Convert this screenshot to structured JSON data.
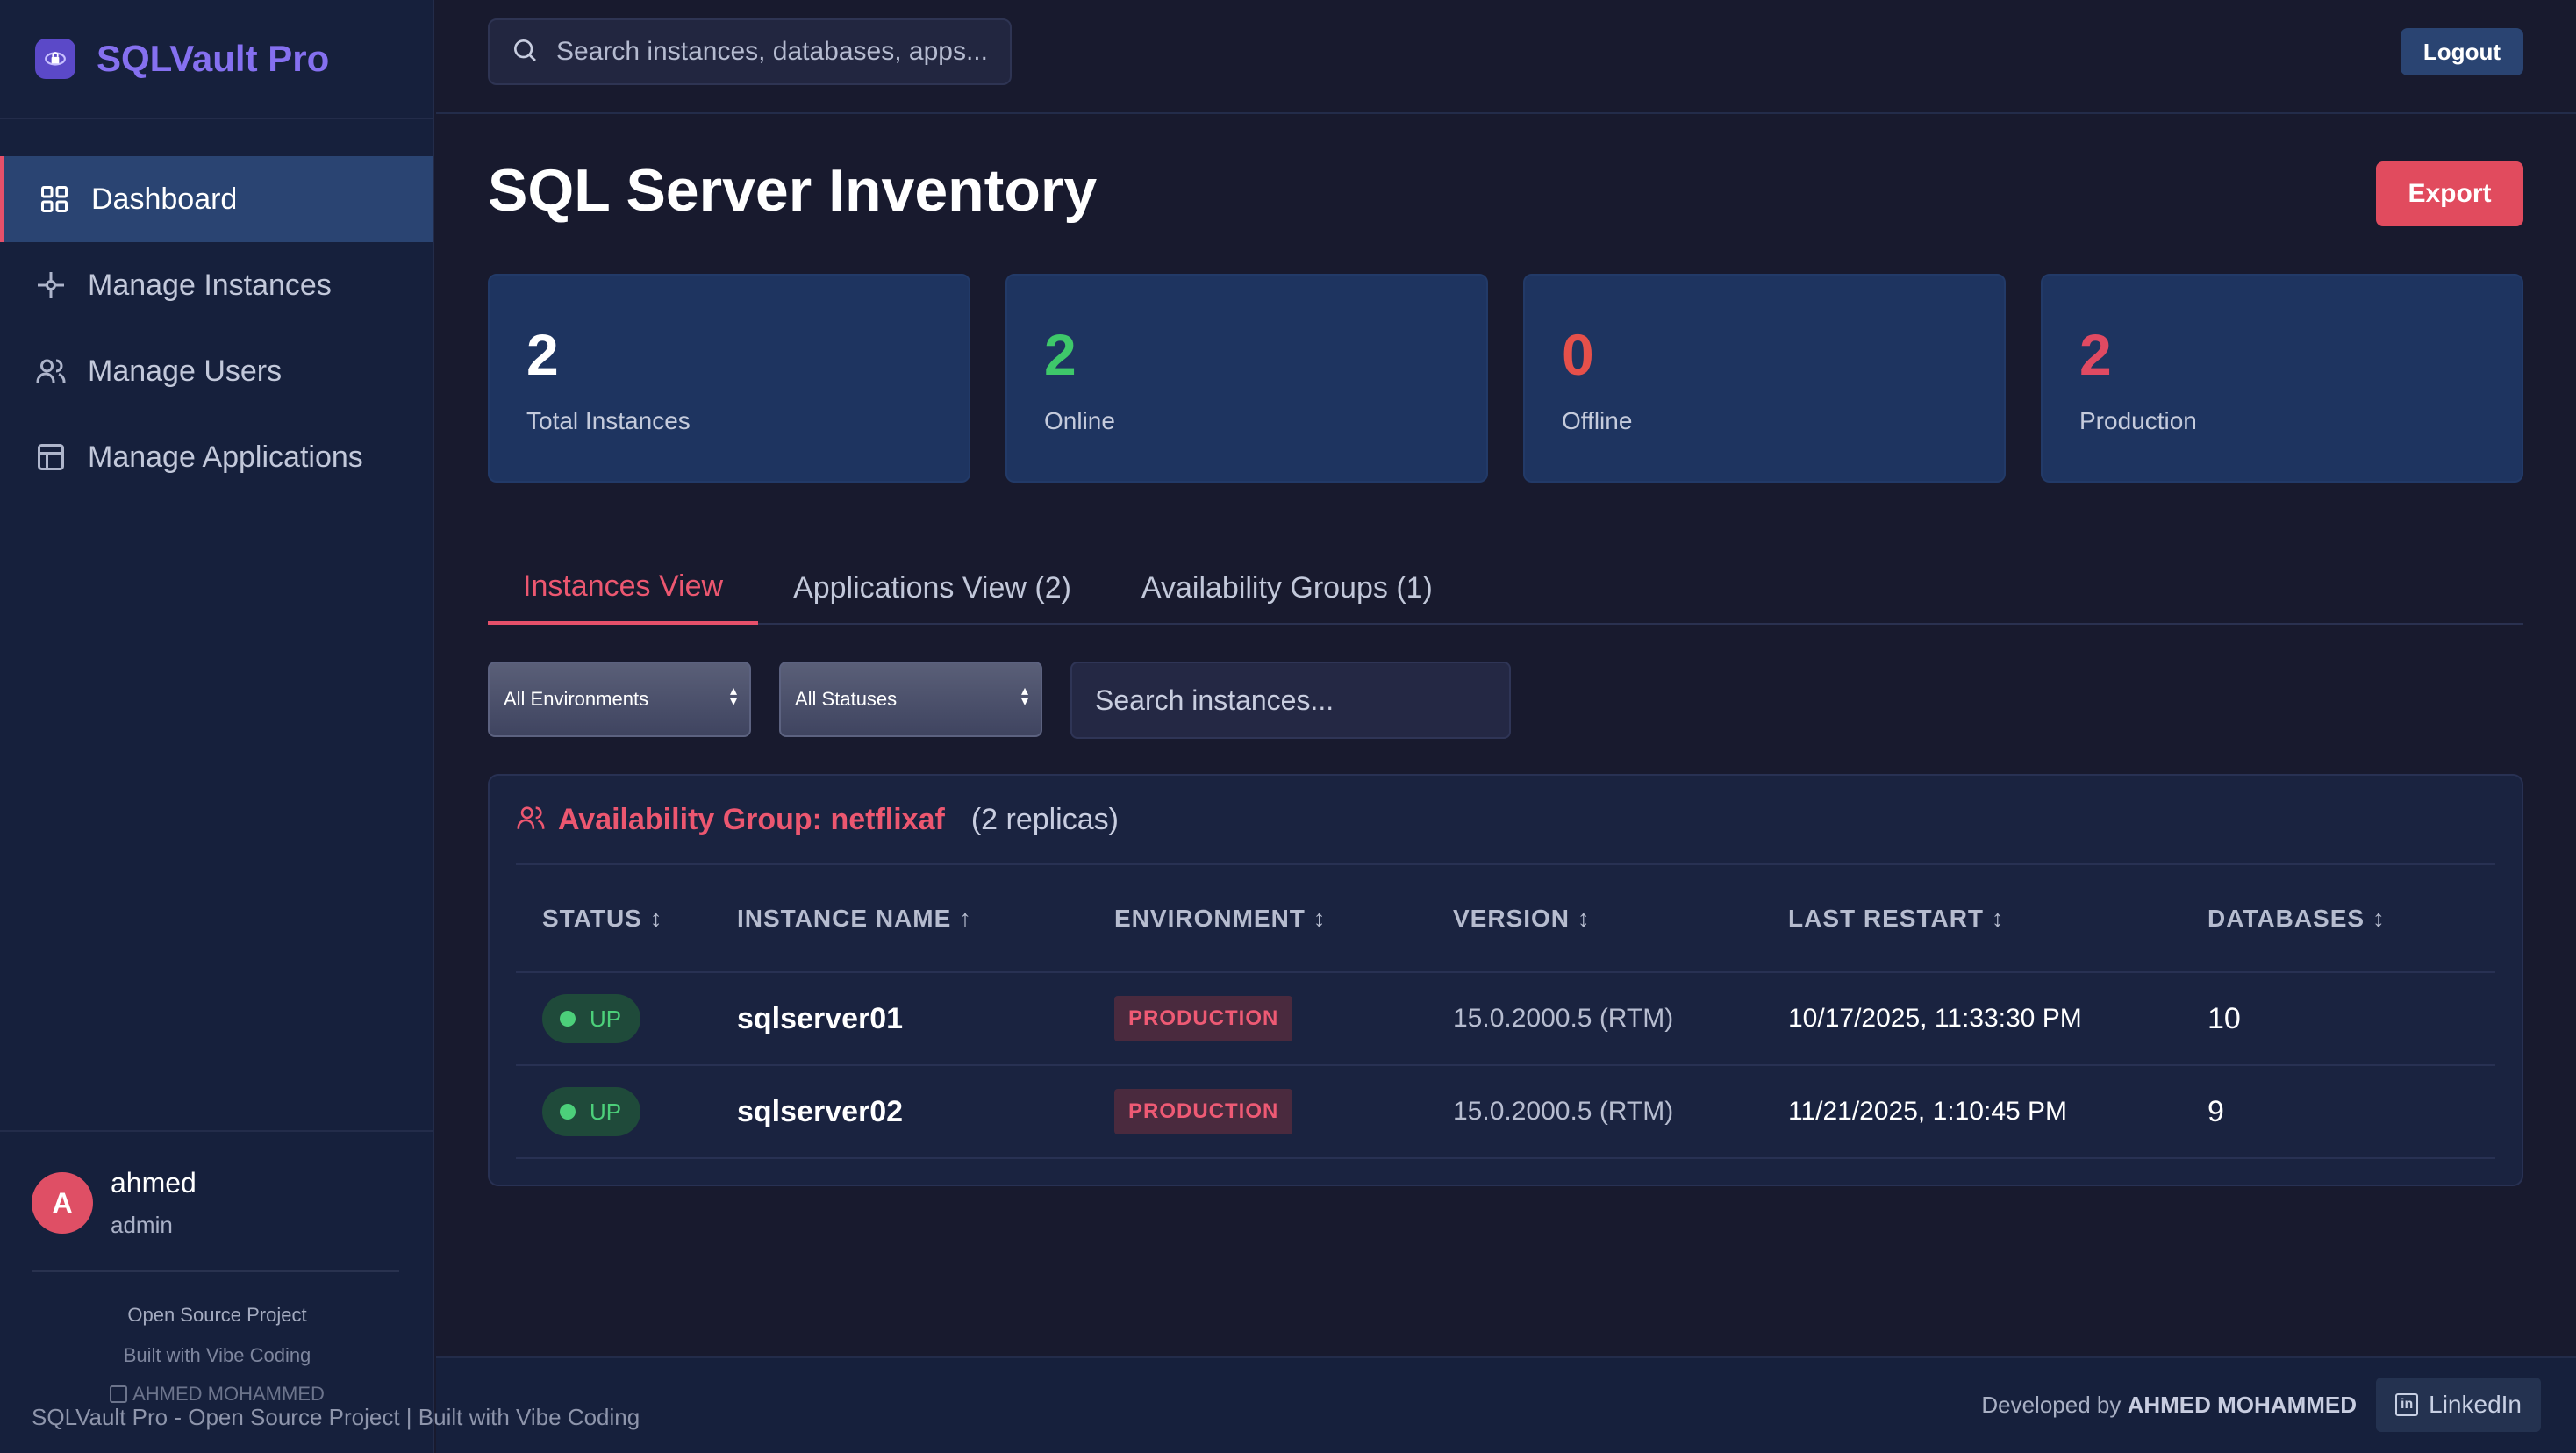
{
  "app": {
    "title": "SQLVault Pro"
  },
  "sidebar": {
    "items": [
      {
        "label": "Dashboard",
        "icon": "grid-icon",
        "active": true
      },
      {
        "label": "Manage Instances",
        "icon": "network-icon"
      },
      {
        "label": "Manage Users",
        "icon": "users-icon"
      },
      {
        "label": "Manage Applications",
        "icon": "layout-icon"
      }
    ],
    "user": {
      "initial": "A",
      "name": "ahmed",
      "role": "admin"
    },
    "footer": {
      "line1": "Open Source Project",
      "line2": "Built with Vibe Coding",
      "line3": "AHMED MOHAMMED"
    }
  },
  "topbar": {
    "search_placeholder": "Search instances, databases, apps...",
    "logout_label": "Logout"
  },
  "page": {
    "title": "SQL Server Inventory",
    "export_label": "Export"
  },
  "stats": [
    {
      "value": "2",
      "label": "Total Instances",
      "color": "#ffffff"
    },
    {
      "value": "2",
      "label": "Online",
      "color": "#3ec86a"
    },
    {
      "value": "0",
      "label": "Offline",
      "color": "#e6504a"
    },
    {
      "value": "2",
      "label": "Production",
      "color": "#e04a62"
    }
  ],
  "tabs": [
    {
      "label": "Instances View",
      "active": true
    },
    {
      "label": "Applications View (2)"
    },
    {
      "label": "Availability Groups (1)"
    }
  ],
  "filters": {
    "environment": "All Environments",
    "status": "All Statuses",
    "search_placeholder": "Search instances..."
  },
  "group": {
    "title": "Availability Group: netflixaf",
    "count": "(2 replicas)",
    "columns": [
      "STATUS ↕",
      "INSTANCE NAME ↑",
      "ENVIRONMENT ↕",
      "VERSION ↕",
      "LAST RESTART ↕",
      "DATABASES ↕"
    ],
    "rows": [
      {
        "status": "UP",
        "name": "sqlserver01",
        "environment": "PRODUCTION",
        "version": "15.0.2000.5 (RTM)",
        "last_restart": "10/17/2025, 11:33:30 PM",
        "databases": "10"
      },
      {
        "status": "UP",
        "name": "sqlserver02",
        "environment": "PRODUCTION",
        "version": "15.0.2000.5 (RTM)",
        "last_restart": "11/21/2025, 1:10:45 PM",
        "databases": "9"
      }
    ]
  },
  "footer": {
    "left": "SQLVault Pro - Open Source Project | Built with Vibe Coding",
    "developed_by": "Developed by",
    "author": "AHMED MOHAMMED",
    "linkedin_label": "LinkedIn"
  }
}
